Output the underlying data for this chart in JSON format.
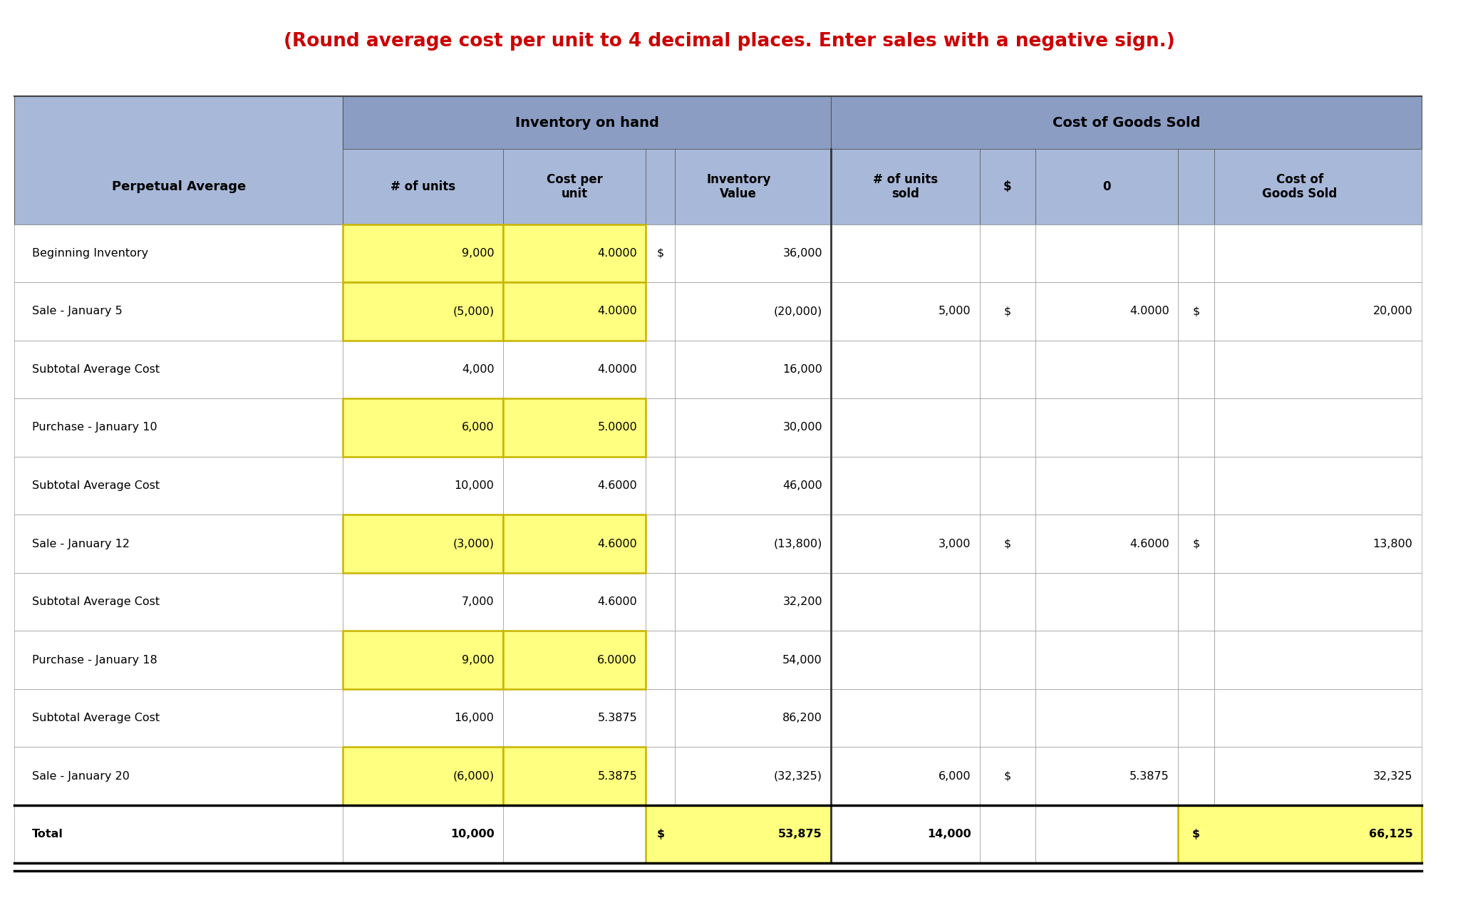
{
  "title": "(Round average cost per unit to 4 decimal places. Enter sales with a negative sign.)",
  "title_color": "#CC0000",
  "title_fontsize": 19,
  "header_bg": "#8B9DC3",
  "subheader_bg": "#A8B8D8",
  "white_bg": "#FFFFFF",
  "yellow_highlight": "#FFFF80",
  "yellow_border": "#C8B400",
  "rows": [
    {
      "label": "Beginning Inventory",
      "units": "9,000",
      "cpu": "4.0000",
      "inv_dollar": "$",
      "inv_val": "36,000",
      "sold_units": "",
      "sold_dollar": "",
      "sold_cpu": "",
      "cogs_dollar": "",
      "cogs_val": "",
      "hl_units": true,
      "hl_cpu": true,
      "is_total": false
    },
    {
      "label": "Sale - January 5",
      "units": "(5,000)",
      "cpu": "4.0000",
      "inv_dollar": "",
      "inv_val": "(20,000)",
      "sold_units": "5,000",
      "sold_dollar": "$",
      "sold_cpu": "4.0000",
      "cogs_dollar": "$",
      "cogs_val": "20,000",
      "hl_units": true,
      "hl_cpu": true,
      "is_total": false
    },
    {
      "label": "Subtotal Average Cost",
      "units": "4,000",
      "cpu": "4.0000",
      "inv_dollar": "",
      "inv_val": "16,000",
      "sold_units": "",
      "sold_dollar": "",
      "sold_cpu": "",
      "cogs_dollar": "",
      "cogs_val": "",
      "hl_units": false,
      "hl_cpu": false,
      "is_total": false
    },
    {
      "label": "Purchase - January 10",
      "units": "6,000",
      "cpu": "5.0000",
      "inv_dollar": "",
      "inv_val": "30,000",
      "sold_units": "",
      "sold_dollar": "",
      "sold_cpu": "",
      "cogs_dollar": "",
      "cogs_val": "",
      "hl_units": true,
      "hl_cpu": true,
      "is_total": false
    },
    {
      "label": "Subtotal Average Cost",
      "units": "10,000",
      "cpu": "4.6000",
      "inv_dollar": "",
      "inv_val": "46,000",
      "sold_units": "",
      "sold_dollar": "",
      "sold_cpu": "",
      "cogs_dollar": "",
      "cogs_val": "",
      "hl_units": false,
      "hl_cpu": false,
      "is_total": false
    },
    {
      "label": "Sale - January 12",
      "units": "(3,000)",
      "cpu": "4.6000",
      "inv_dollar": "",
      "inv_val": "(13,800)",
      "sold_units": "3,000",
      "sold_dollar": "$",
      "sold_cpu": "4.6000",
      "cogs_dollar": "$",
      "cogs_val": "13,800",
      "hl_units": true,
      "hl_cpu": true,
      "is_total": false
    },
    {
      "label": "Subtotal Average Cost",
      "units": "7,000",
      "cpu": "4.6000",
      "inv_dollar": "",
      "inv_val": "32,200",
      "sold_units": "",
      "sold_dollar": "",
      "sold_cpu": "",
      "cogs_dollar": "",
      "cogs_val": "",
      "hl_units": false,
      "hl_cpu": false,
      "is_total": false
    },
    {
      "label": "Purchase - January 18",
      "units": "9,000",
      "cpu": "6.0000",
      "inv_dollar": "",
      "inv_val": "54,000",
      "sold_units": "",
      "sold_dollar": "",
      "sold_cpu": "",
      "cogs_dollar": "",
      "cogs_val": "",
      "hl_units": true,
      "hl_cpu": true,
      "is_total": false
    },
    {
      "label": "Subtotal Average Cost",
      "units": "16,000",
      "cpu": "5.3875",
      "inv_dollar": "",
      "inv_val": "86,200",
      "sold_units": "",
      "sold_dollar": "",
      "sold_cpu": "",
      "cogs_dollar": "",
      "cogs_val": "",
      "hl_units": false,
      "hl_cpu": false,
      "is_total": false
    },
    {
      "label": "Sale - January 20",
      "units": "(6,000)",
      "cpu": "5.3875",
      "inv_dollar": "",
      "inv_val": "(32,325)",
      "sold_units": "6,000",
      "sold_dollar": "$",
      "sold_cpu": "5.3875",
      "cogs_dollar": "",
      "cogs_val": "32,325",
      "hl_units": true,
      "hl_cpu": true,
      "is_total": false
    },
    {
      "label": "Total",
      "units": "10,000",
      "cpu": "",
      "inv_dollar": "$",
      "inv_val": "53,875",
      "sold_units": "14,000",
      "sold_dollar": "",
      "sold_cpu": "",
      "cogs_dollar": "$",
      "cogs_val": "66,125",
      "hl_units": false,
      "hl_cpu": false,
      "is_total": true
    }
  ],
  "figsize": [
    20.46,
    12.84
  ],
  "dpi": 100
}
